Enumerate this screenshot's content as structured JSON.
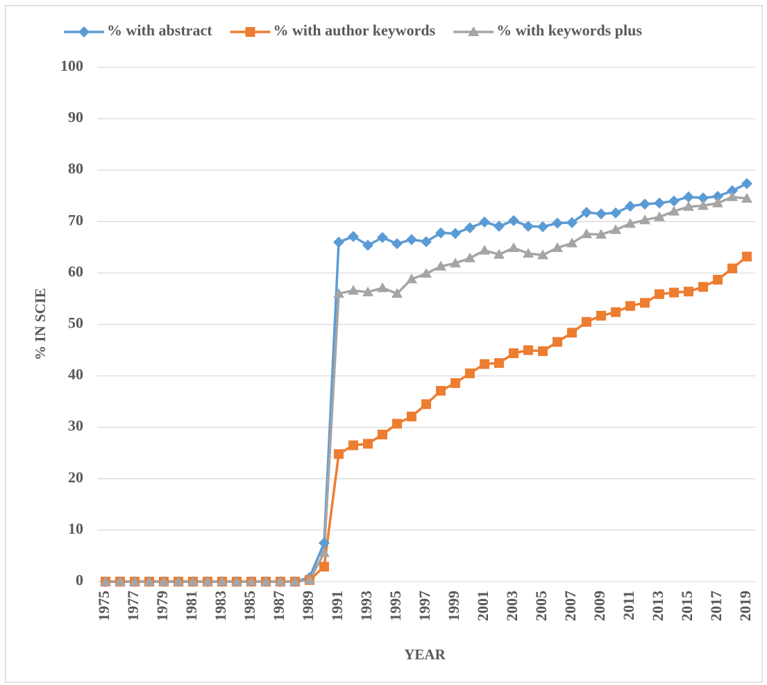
{
  "chart_data": {
    "type": "line",
    "xlabel": "YEAR",
    "ylabel": "% IN SCIE",
    "x": [
      1975,
      1976,
      1977,
      1978,
      1979,
      1980,
      1981,
      1982,
      1983,
      1984,
      1985,
      1986,
      1987,
      1988,
      1989,
      1990,
      1991,
      1992,
      1993,
      1994,
      1995,
      1996,
      1997,
      1998,
      1999,
      2000,
      2001,
      2002,
      2003,
      2004,
      2005,
      2006,
      2007,
      2008,
      2009,
      2010,
      2011,
      2012,
      2013,
      2014,
      2015,
      2016,
      2017,
      2018,
      2019
    ],
    "xlim": [
      1975,
      2019
    ],
    "xticks": [
      1975,
      1977,
      1979,
      1981,
      1983,
      1985,
      1987,
      1989,
      1991,
      1993,
      1995,
      1997,
      1999,
      2001,
      2003,
      2005,
      2007,
      2009,
      2011,
      2013,
      2015,
      2017,
      2019
    ],
    "ylim": [
      0,
      100
    ],
    "yticks": [
      0,
      10,
      20,
      30,
      40,
      50,
      60,
      70,
      80,
      90,
      100
    ],
    "grid": true,
    "legend": "top",
    "series": [
      {
        "name": "% with abstract",
        "color": "#5b9bd5",
        "marker": "diamond",
        "values": [
          0,
          0,
          0,
          0,
          0,
          0,
          0,
          0,
          0,
          0,
          0,
          0,
          0,
          0,
          0.8,
          7.5,
          66,
          67.1,
          65.4,
          66.9,
          65.7,
          66.5,
          66.1,
          67.8,
          67.7,
          68.8,
          69.9,
          69.1,
          70.2,
          69.1,
          69,
          69.7,
          69.8,
          71.8,
          71.5,
          71.7,
          73,
          73.4,
          73.6,
          74,
          74.8,
          74.6,
          74.9,
          76,
          77.4
        ]
      },
      {
        "name": "% with author keywords",
        "color": "#ed7d31",
        "marker": "square",
        "values": [
          0,
          0,
          0,
          0,
          0,
          0,
          0,
          0,
          0,
          0,
          0,
          0,
          0,
          0,
          0.3,
          2.9,
          24.8,
          26.5,
          26.8,
          28.6,
          30.7,
          32.1,
          34.5,
          37.1,
          38.6,
          40.5,
          42.3,
          42.5,
          44.4,
          45,
          44.8,
          46.6,
          48.4,
          50.5,
          51.7,
          52.4,
          53.6,
          54.2,
          55.9,
          56.2,
          56.4,
          57.3,
          58.7,
          60.9,
          63.2
        ]
      },
      {
        "name": "% with keywords plus",
        "color": "#a5a5a5",
        "marker": "triangle",
        "values": [
          0,
          0,
          0,
          0,
          0,
          0,
          0,
          0,
          0,
          0,
          0,
          0,
          0,
          0,
          0.3,
          5.6,
          56,
          56.6,
          56.3,
          57.1,
          56,
          58.8,
          59.9,
          61.3,
          61.9,
          62.9,
          64.4,
          63.6,
          64.9,
          63.8,
          63.5,
          64.9,
          65.8,
          67.6,
          67.5,
          68.4,
          69.6,
          70.3,
          70.9,
          72,
          72.9,
          73.1,
          73.6,
          74.8,
          74.5
        ]
      }
    ]
  }
}
